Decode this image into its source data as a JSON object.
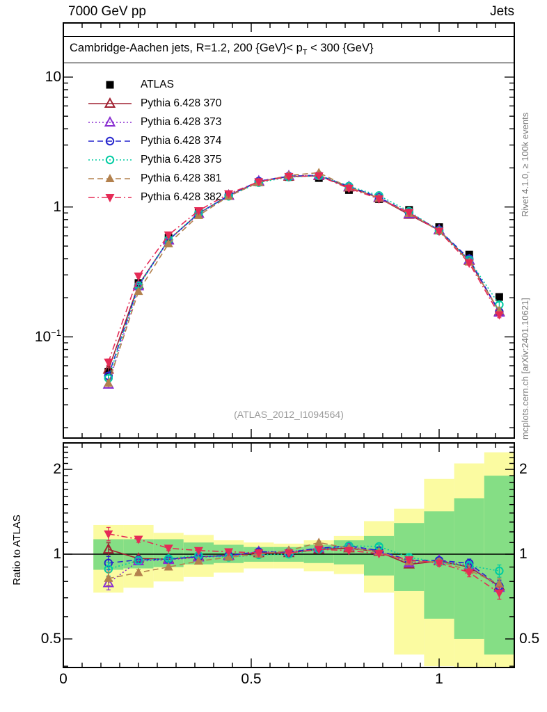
{
  "header": {
    "left": "7000 GeV pp",
    "right": "Jets"
  },
  "panel_title": {
    "part1": "Cambridge-Aachen jets, R=1.2,  200 {GeV}< p",
    "sub": "T",
    "part2": " < 300 {GeV}"
  },
  "watermark": "(ATLAS_2012_I1094564)",
  "side_notes": {
    "top": "Rivet 4.1.0, ≥ 100k events",
    "bottom": "mcplots.cern.ch [arXiv:2401.10621]"
  },
  "ratio_ylabel": "Ratio to ATLAS",
  "axes": {
    "x": {
      "range": [
        0,
        1.2
      ],
      "major_ticks": [
        0.5,
        1.0
      ],
      "minor_step": 0.05,
      "tick_labels": [
        "0",
        "0.5",
        "1"
      ]
    },
    "main_y": {
      "scale": "log",
      "major_ticks": [
        10,
        1,
        0.1
      ],
      "tick_labels": [
        "10",
        "1"
      ],
      "low_label": {
        "base": "10",
        "exp": "−1"
      }
    },
    "ratio_y": {
      "scale": "log",
      "major_ticks": [
        2,
        1,
        0.5
      ],
      "tick_labels": [
        "2",
        "1",
        "0.5"
      ]
    }
  },
  "chart_data": {
    "type": "line",
    "title": "Cambridge-Aachen jets, R=1.2, 200 GeV < pT < 300 GeV",
    "x": [
      0.12,
      0.2,
      0.28,
      0.36,
      0.44,
      0.52,
      0.6,
      0.68,
      0.76,
      0.84,
      0.92,
      1.0,
      1.08,
      1.16
    ],
    "bin_width": 0.08,
    "main_ylim": [
      0.0167,
      26.1
    ],
    "ratio_ylim": [
      0.396,
      2.48
    ],
    "err_frac": [
      0.055,
      0.025,
      0.018,
      0.012,
      0.01,
      0.008,
      0.008,
      0.01,
      0.012,
      0.015,
      0.02,
      0.025,
      0.035,
      0.05
    ],
    "atlas": {
      "label": "ATLAS",
      "color": "#000000",
      "marker": "square-filled",
      "line": "none",
      "values": [
        0.054,
        0.26,
        0.58,
        0.91,
        1.24,
        1.55,
        1.7,
        1.67,
        1.35,
        1.15,
        0.95,
        0.7,
        0.43,
        0.203
      ]
    },
    "series": [
      {
        "label": "Pythia 6.428 370",
        "color": "#a12232",
        "marker": "triangle-up-open",
        "line": "solid",
        "values": [
          0.056,
          0.251,
          0.557,
          0.892,
          1.228,
          1.566,
          1.717,
          1.737,
          1.418,
          1.173,
          0.874,
          0.662,
          0.387,
          0.156
        ],
        "ratio": [
          1.04,
          0.965,
          0.96,
          0.98,
          0.99,
          1.01,
          1.01,
          1.04,
          1.05,
          1.02,
          0.92,
          0.945,
          0.9,
          0.77
        ]
      },
      {
        "label": "Pythia 6.428 373",
        "color": "#8a2fd1",
        "marker": "triangle-up-open",
        "line": "dotted",
        "values": [
          0.043,
          0.246,
          0.554,
          0.887,
          1.221,
          1.581,
          1.734,
          1.754,
          1.431,
          1.185,
          0.884,
          0.665,
          0.391,
          0.154
        ],
        "ratio": [
          0.79,
          0.945,
          0.955,
          0.975,
          0.985,
          1.02,
          1.02,
          1.05,
          1.06,
          1.03,
          0.93,
          0.95,
          0.91,
          0.76
        ]
      },
      {
        "label": "Pythia 6.428 374",
        "color": "#2525cd",
        "marker": "circle-open",
        "line": "dashed",
        "values": [
          0.05,
          0.248,
          0.557,
          0.892,
          1.228,
          1.581,
          1.726,
          1.754,
          1.445,
          1.185,
          0.903,
          0.665,
          0.399,
          0.156
        ],
        "ratio": [
          0.93,
          0.955,
          0.96,
          0.98,
          0.99,
          1.02,
          1.015,
          1.05,
          1.07,
          1.03,
          0.95,
          0.95,
          0.928,
          0.77
        ]
      },
      {
        "label": "Pythia 6.428 375",
        "color": "#00cba2",
        "marker": "circle-open",
        "line": "dotted",
        "values": [
          0.048,
          0.247,
          0.56,
          0.901,
          1.209,
          1.542,
          1.7,
          1.737,
          1.445,
          1.225,
          0.926,
          0.655,
          0.391,
          0.177
        ],
        "ratio": [
          0.885,
          0.95,
          0.965,
          0.99,
          0.975,
          0.995,
          1.0,
          1.04,
          1.07,
          1.065,
          0.975,
          0.935,
          0.91,
          0.872
        ]
      },
      {
        "label": "Pythia 6.428 381",
        "color": "#b3814d",
        "marker": "triangle-up-filled",
        "line": "dashed",
        "values": [
          0.044,
          0.224,
          0.522,
          0.86,
          1.209,
          1.55,
          1.751,
          1.837,
          1.418,
          1.173,
          0.893,
          0.658,
          0.377,
          0.159
        ],
        "ratio": [
          0.82,
          0.86,
          0.9,
          0.945,
          0.975,
          1.0,
          1.03,
          1.1,
          1.05,
          1.02,
          0.94,
          0.94,
          0.877,
          0.783
        ]
      },
      {
        "label": "Pythia 6.428 382",
        "color": "#e52b56",
        "marker": "triangle-down-filled",
        "line": "dashdot",
        "values": [
          0.064,
          0.294,
          0.609,
          0.937,
          1.265,
          1.566,
          1.717,
          1.737,
          1.391,
          1.156,
          0.907,
          0.651,
          0.37,
          0.148
        ],
        "ratio": [
          1.18,
          1.13,
          1.05,
          1.03,
          1.02,
          1.01,
          1.01,
          1.04,
          1.03,
          1.005,
          0.955,
          0.93,
          0.861,
          0.728
        ]
      }
    ],
    "ratio_bands": {
      "colors": {
        "inner": "#85de85",
        "outer": "#fbfba1"
      },
      "bins": [
        {
          "x0": 0.08,
          "x1": 0.16,
          "outer_hi": 1.27,
          "inner_hi": 1.13,
          "inner_lo": 0.88,
          "outer_lo": 0.73
        },
        {
          "x0": 0.16,
          "x1": 0.24,
          "outer_hi": 1.27,
          "inner_hi": 1.13,
          "inner_lo": 0.89,
          "outer_lo": 0.76
        },
        {
          "x0": 0.24,
          "x1": 0.32,
          "outer_hi": 1.19,
          "inner_hi": 1.13,
          "inner_lo": 0.9,
          "outer_lo": 0.8
        },
        {
          "x0": 0.32,
          "x1": 0.4,
          "outer_hi": 1.17,
          "inner_hi": 1.1,
          "inner_lo": 0.92,
          "outer_lo": 0.83
        },
        {
          "x0": 0.4,
          "x1": 0.48,
          "outer_hi": 1.12,
          "inner_hi": 1.08,
          "inner_lo": 0.93,
          "outer_lo": 0.86
        },
        {
          "x0": 0.48,
          "x1": 0.56,
          "outer_hi": 1.1,
          "inner_hi": 1.06,
          "inner_lo": 0.94,
          "outer_lo": 0.89
        },
        {
          "x0": 0.56,
          "x1": 0.64,
          "outer_hi": 1.09,
          "inner_hi": 1.06,
          "inner_lo": 0.94,
          "outer_lo": 0.89
        },
        {
          "x0": 0.64,
          "x1": 0.72,
          "outer_hi": 1.12,
          "inner_hi": 1.08,
          "inner_lo": 0.93,
          "outer_lo": 0.87
        },
        {
          "x0": 0.72,
          "x1": 0.8,
          "outer_hi": 1.16,
          "inner_hi": 1.12,
          "inner_lo": 0.92,
          "outer_lo": 0.85
        },
        {
          "x0": 0.8,
          "x1": 0.88,
          "outer_hi": 1.31,
          "inner_hi": 1.16,
          "inner_lo": 0.84,
          "outer_lo": 0.73
        },
        {
          "x0": 0.88,
          "x1": 0.96,
          "outer_hi": 1.45,
          "inner_hi": 1.29,
          "inner_lo": 0.74,
          "outer_lo": 0.44
        },
        {
          "x0": 0.96,
          "x1": 1.04,
          "outer_hi": 1.85,
          "inner_hi": 1.42,
          "inner_lo": 0.59,
          "outer_lo": 0.4
        },
        {
          "x0": 1.04,
          "x1": 1.12,
          "outer_hi": 2.1,
          "inner_hi": 1.58,
          "inner_lo": 0.5,
          "outer_lo": 0.37
        },
        {
          "x0": 1.12,
          "x1": 1.2,
          "outer_hi": 2.3,
          "inner_hi": 1.9,
          "inner_lo": 0.44,
          "outer_lo": 0.35
        }
      ]
    }
  }
}
